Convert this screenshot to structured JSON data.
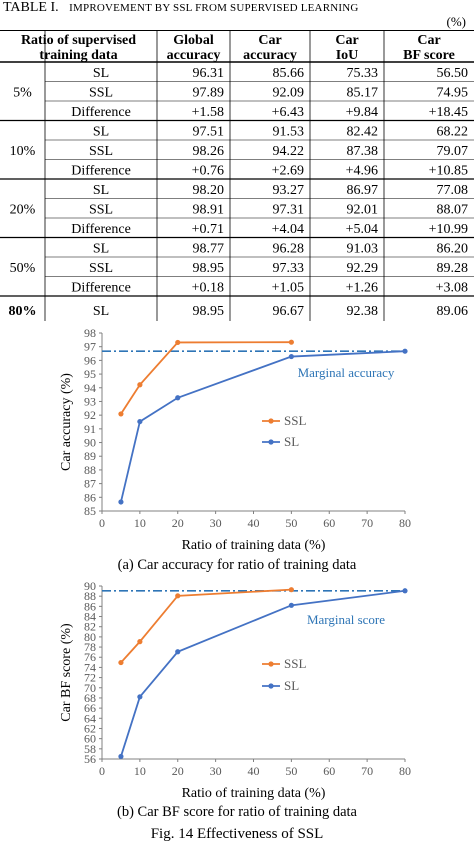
{
  "table": {
    "label": "TABLE I.",
    "title": "Improvement by SSL from supervised learning",
    "unit": "(%)",
    "header_col1": [
      "Ratio of supervised",
      "training data"
    ],
    "headers": [
      [
        "Global",
        "accuracy"
      ],
      [
        "Car",
        "accuracy"
      ],
      [
        "Car",
        "IoU"
      ],
      [
        "Car",
        "BF score"
      ]
    ],
    "groups": [
      {
        "ratio": "5%",
        "rows": [
          {
            "label": "SL",
            "values": [
              "96.31",
              "85.66",
              "75.33",
              "56.50"
            ]
          },
          {
            "label": "SSL",
            "values": [
              "97.89",
              "92.09",
              "85.17",
              "74.95"
            ]
          },
          {
            "label": "Difference",
            "values": [
              "+1.58",
              "+6.43",
              "+9.84",
              "+18.45"
            ]
          }
        ]
      },
      {
        "ratio": "10%",
        "rows": [
          {
            "label": "SL",
            "values": [
              "97.51",
              "91.53",
              "82.42",
              "68.22"
            ]
          },
          {
            "label": "SSL",
            "values": [
              "98.26",
              "94.22",
              "87.38",
              "79.07"
            ]
          },
          {
            "label": "Difference",
            "values": [
              "+0.76",
              "+2.69",
              "+4.96",
              "+10.85"
            ]
          }
        ]
      },
      {
        "ratio": "20%",
        "rows": [
          {
            "label": "SL",
            "values": [
              "98.20",
              "93.27",
              "86.97",
              "77.08"
            ]
          },
          {
            "label": "SSL",
            "values": [
              "98.91",
              "97.31",
              "92.01",
              "88.07"
            ]
          },
          {
            "label": "Difference",
            "values": [
              "+0.71",
              "+4.04",
              "+5.04",
              "+10.99"
            ]
          }
        ]
      },
      {
        "ratio": "50%",
        "rows": [
          {
            "label": "SL",
            "values": [
              "98.77",
              "96.28",
              "91.03",
              "86.20"
            ]
          },
          {
            "label": "SSL",
            "values": [
              "98.95",
              "97.33",
              "92.29",
              "89.28"
            ]
          },
          {
            "label": "Difference",
            "values": [
              "+0.18",
              "+1.05",
              "+1.26",
              "+3.08"
            ]
          }
        ]
      },
      {
        "ratio": "80%",
        "rows": [
          {
            "label": "SL",
            "values": [
              "98.95",
              "96.67",
              "92.38",
              "89.06"
            ]
          }
        ]
      }
    ]
  },
  "chart_data": [
    {
      "type": "line",
      "caption": "(a) Car accuracy for ratio of training data",
      "xlabel": "Ratio of training data (%)",
      "ylabel": "Car accuracy (%)",
      "xlim": [
        0,
        80
      ],
      "ylim": [
        85,
        98
      ],
      "xticks": [
        0,
        10,
        20,
        30,
        40,
        50,
        60,
        70,
        80
      ],
      "yticks": [
        85,
        86,
        87,
        88,
        89,
        90,
        91,
        92,
        93,
        94,
        95,
        96,
        97,
        98
      ],
      "grid": false,
      "legend": "center-left",
      "series": [
        {
          "name": "SSL",
          "color": "#ED7D31",
          "x": [
            5,
            10,
            20,
            50
          ],
          "y": [
            92.09,
            94.22,
            97.31,
            97.33
          ]
        },
        {
          "name": "SL",
          "color": "#4472C4",
          "x": [
            5,
            10,
            20,
            50,
            80
          ],
          "y": [
            85.66,
            91.53,
            93.27,
            96.28,
            96.67
          ]
        }
      ],
      "reference_line": {
        "label": "Marginal accuracy",
        "y": 96.67,
        "color": "#2E75B6"
      }
    },
    {
      "type": "line",
      "caption": "(b) Car BF score for ratio of training data",
      "xlabel": "Ratio of training data (%)",
      "ylabel": "Car BF score (%)",
      "xlim": [
        0,
        80
      ],
      "ylim": [
        56,
        90
      ],
      "xticks": [
        0,
        10,
        20,
        30,
        40,
        50,
        60,
        70,
        80
      ],
      "yticks": [
        56,
        58,
        60,
        62,
        64,
        66,
        68,
        70,
        72,
        74,
        76,
        78,
        80,
        82,
        84,
        86,
        88,
        90
      ],
      "grid": false,
      "legend": "center-left",
      "series": [
        {
          "name": "SSL",
          "color": "#ED7D31",
          "x": [
            5,
            10,
            20,
            50
          ],
          "y": [
            74.95,
            79.07,
            88.07,
            89.28
          ]
        },
        {
          "name": "SL",
          "color": "#4472C4",
          "x": [
            5,
            10,
            20,
            50,
            80
          ],
          "y": [
            56.5,
            68.22,
            77.08,
            86.2,
            89.06
          ]
        }
      ],
      "reference_line": {
        "label": "Marginal score",
        "y": 89.06,
        "color": "#2E75B6"
      }
    }
  ],
  "figure_caption": "Fig. 14 Effectiveness of SSL"
}
